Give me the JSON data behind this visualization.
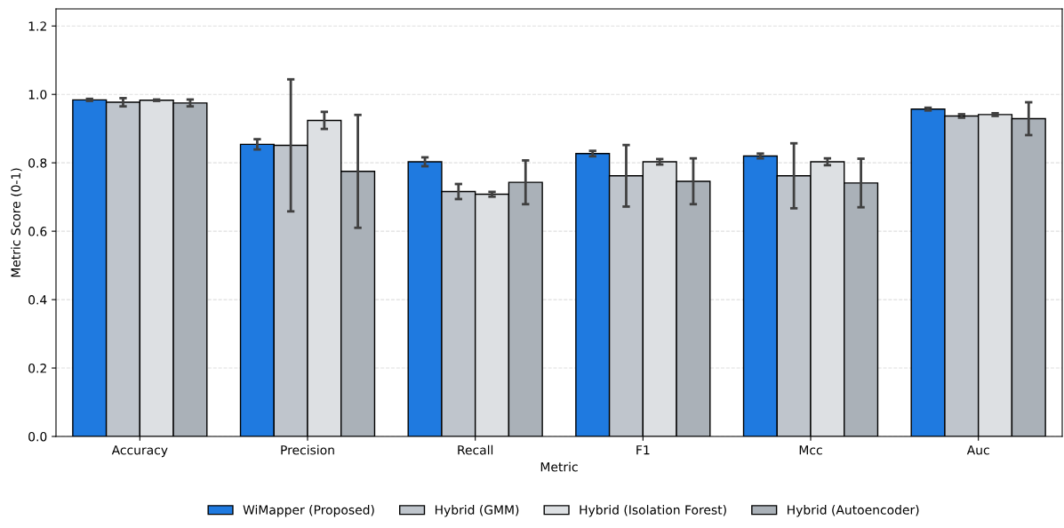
{
  "chart_data": {
    "type": "bar",
    "xlabel": "Metric",
    "ylabel": "Metric Score (0-1)",
    "categories": [
      "Accuracy",
      "Precision",
      "Recall",
      "F1",
      "Mcc",
      "Auc"
    ],
    "series": [
      {
        "name": "WiMapper (Proposed)",
        "color": "#1f7ae0",
        "values": [
          0.984,
          0.854,
          0.803,
          0.827,
          0.82,
          0.957
        ],
        "errors": [
          0.003,
          0.015,
          0.013,
          0.008,
          0.007,
          0.004
        ]
      },
      {
        "name": "Hybrid (GMM)",
        "color": "#bfc5cc",
        "values": [
          0.977,
          0.851,
          0.716,
          0.762,
          0.762,
          0.937
        ],
        "errors": [
          0.012,
          0.193,
          0.022,
          0.09,
          0.095,
          0.005
        ]
      },
      {
        "name": "Hybrid (Isolation Forest)",
        "color": "#dde0e3",
        "values": [
          0.983,
          0.924,
          0.708,
          0.803,
          0.803,
          0.941
        ],
        "errors": [
          0.002,
          0.025,
          0.007,
          0.008,
          0.01,
          0.004
        ]
      },
      {
        "name": "Hybrid (Autoencoder)",
        "color": "#aab1b8",
        "values": [
          0.975,
          0.775,
          0.743,
          0.746,
          0.741,
          0.929
        ],
        "errors": [
          0.01,
          0.165,
          0.064,
          0.067,
          0.071,
          0.048
        ]
      }
    ],
    "ylim": [
      0,
      1.25
    ],
    "yticks": [
      {
        "value": 0,
        "label": "0.0"
      },
      0.2,
      0.4,
      0.6,
      0.8,
      {
        "value": 1,
        "label": "1.0"
      },
      1.2
    ],
    "grid": "y",
    "legend": "bottom"
  }
}
